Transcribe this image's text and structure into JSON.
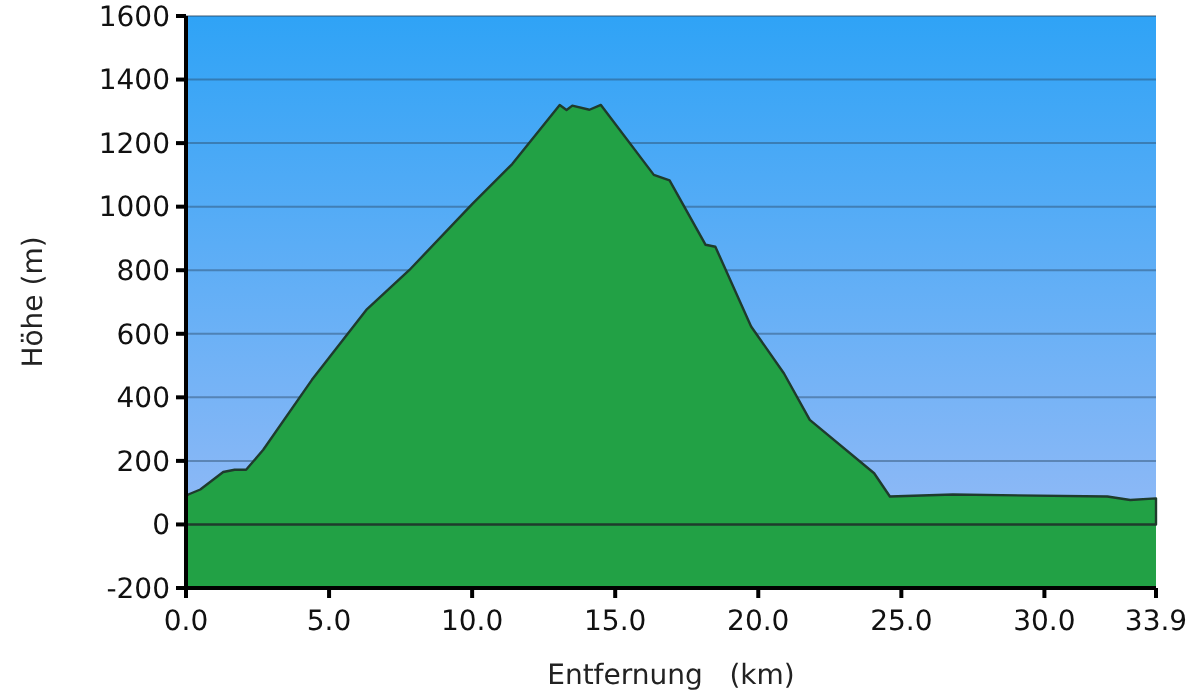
{
  "chart_data": {
    "type": "area",
    "xlabel": "Entfernung   (km)",
    "ylabel": "Höhe (m)",
    "x": [
      0,
      0.1,
      0.5,
      1.3,
      1.7,
      2.1,
      2.7,
      4.4,
      6.3,
      7.8,
      10.0,
      11.4,
      13.06,
      13.3,
      13.5,
      14.1,
      14.5,
      16.35,
      16.9,
      18.16,
      18.5,
      19.75,
      20.9,
      21.8,
      24.05,
      24.6,
      26.8,
      32.2,
      33.0,
      33.9
    ],
    "series": [
      {
        "color": "#22a145",
        "values": [
          90,
          95,
          110,
          165,
          172,
          172,
          235,
          455,
          675,
          800,
          1008,
          1134,
          1320,
          1304,
          1318,
          1305,
          1320,
          1100,
          1083,
          880,
          874,
          623,
          475,
          329,
          161,
          88,
          94,
          88,
          77,
          82
        ]
      }
    ],
    "xlim": [
      0,
      33.9
    ],
    "xticks": [
      {
        "value": 0,
        "label": "0.0"
      },
      {
        "value": 5,
        "label": "5.0"
      },
      {
        "value": 10,
        "label": "10.0"
      },
      {
        "value": 15,
        "label": "15.0"
      },
      {
        "value": 20,
        "label": "20.0"
      },
      {
        "value": 25,
        "label": "25.0"
      },
      {
        "value": 30,
        "label": "30.0"
      },
      33.9
    ],
    "ylim": [
      -200,
      1600
    ],
    "yticks": [
      -200,
      0,
      200,
      400,
      600,
      800,
      1000,
      1200,
      1400,
      1600
    ],
    "grid": "y"
  }
}
